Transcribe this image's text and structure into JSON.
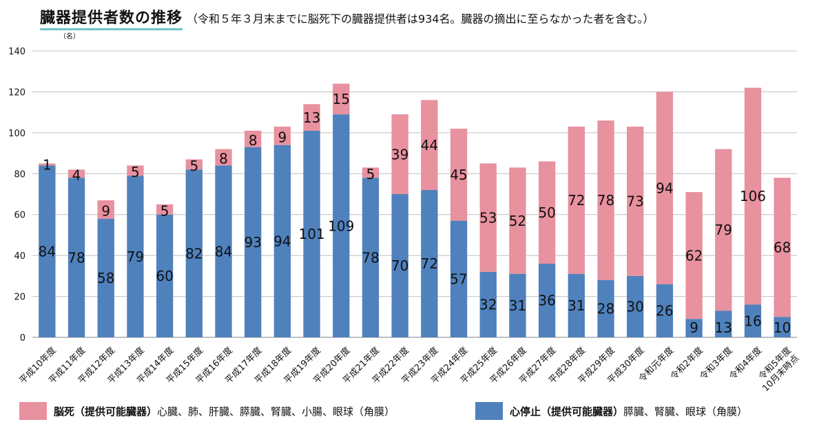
{
  "title": "臓器提供者数の推移",
  "subtitle": "（令和５年３月末までに脳死下の臓器提供者は934名。臓器の摘出に至らなかった者を含む。）",
  "unit_label": "（名）",
  "colors": {
    "cardiac": "#4f81bd",
    "brain": "#e8919f",
    "grid": "#bfbfbf"
  },
  "legend": {
    "brain": {
      "bold": "脳死（提供可能臓器）",
      "text": "心臓、肺、肝臓、膵臓、腎臓、小腸、眼球（角膜）"
    },
    "cardiac": {
      "bold": "心停止（提供可能臓器）",
      "text": "膵臓、腎臓、眼球（角膜）"
    }
  },
  "chart_data": {
    "type": "bar",
    "stacked": true,
    "ylim": [
      0,
      140
    ],
    "yticks": [
      0,
      20,
      40,
      60,
      80,
      100,
      120,
      140
    ],
    "grid": true,
    "categories": [
      "平成10年度",
      "平成11年度",
      "平成12年度",
      "平成13年度",
      "平成14年度",
      "平成15年度",
      "平成16年度",
      "平成17年度",
      "平成18年度",
      "平成19年度",
      "平成20年度",
      "平成21年度",
      "平成22年度",
      "平成23年度",
      "平成24年度",
      "平成25年度",
      "平成26年度",
      "平成27年度",
      "平成28年度",
      "平成29年度",
      "平成30年度",
      "令和元年度",
      "令和2年度",
      "令和3年度",
      "令和4年度",
      "令和5年度10月末時点"
    ],
    "series": [
      {
        "name": "心停止",
        "values": [
          84,
          78,
          58,
          79,
          60,
          82,
          84,
          93,
          94,
          101,
          109,
          78,
          70,
          72,
          57,
          32,
          31,
          36,
          31,
          28,
          30,
          26,
          9,
          13,
          16,
          10
        ]
      },
      {
        "name": "脳死",
        "values": [
          1,
          4,
          9,
          5,
          5,
          5,
          8,
          8,
          9,
          13,
          15,
          5,
          39,
          44,
          45,
          53,
          52,
          50,
          72,
          78,
          73,
          94,
          62,
          79,
          106,
          68
        ]
      }
    ]
  }
}
